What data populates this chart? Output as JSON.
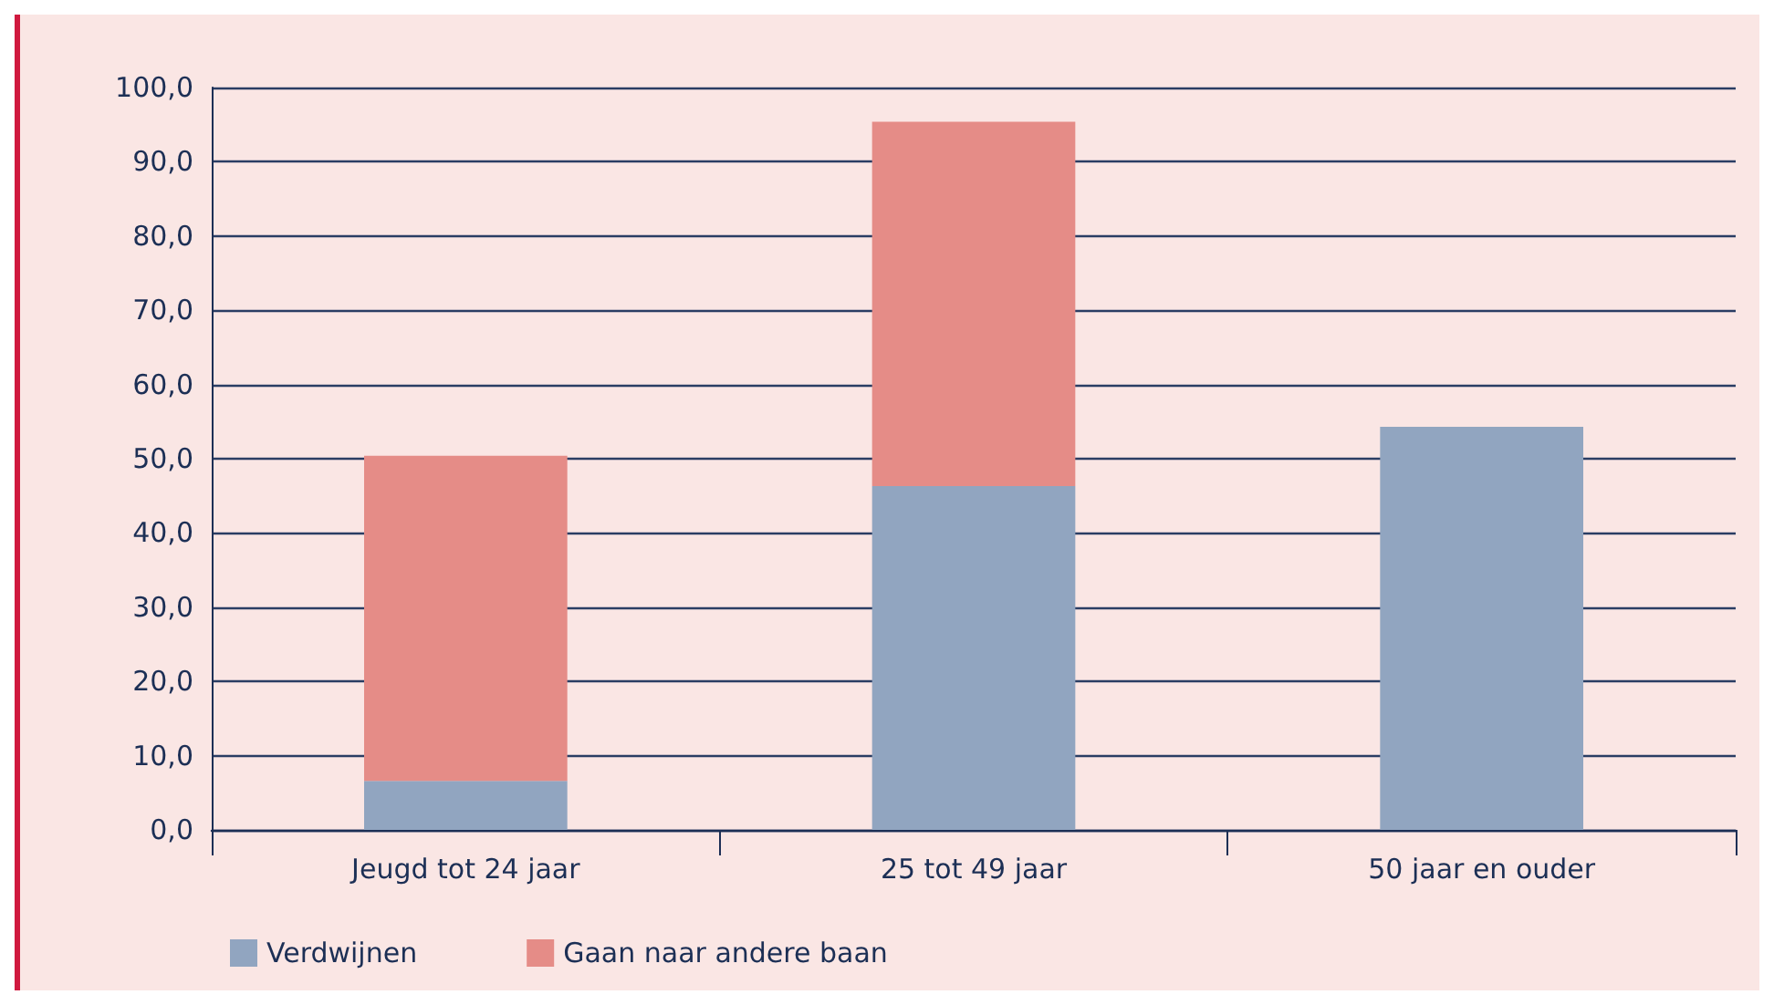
{
  "chart_data": {
    "type": "bar",
    "stacked": true,
    "categories": [
      "Jeugd tot 24 jaar",
      "25 tot 49 jaar",
      "50 jaar en ouder"
    ],
    "series": [
      {
        "name": "Verdwijnen",
        "color": "#91a5c0",
        "values": [
          6.6,
          46.3,
          54.3
        ]
      },
      {
        "name": "Gaan naar andere baan",
        "color": "#e58c87",
        "values": [
          43.8,
          49.1,
          null
        ]
      }
    ],
    "ylim": [
      0,
      100
    ],
    "yticks": [
      {
        "value": 0,
        "label": "0,0"
      },
      {
        "value": 10,
        "label": "10,0"
      },
      {
        "value": 20,
        "label": "20,0"
      },
      {
        "value": 30,
        "label": "30,0"
      },
      {
        "value": 40,
        "label": "40,0"
      },
      {
        "value": 50,
        "label": "50,0"
      },
      {
        "value": 60,
        "label": "60,0"
      },
      {
        "value": 70,
        "label": "70,0"
      },
      {
        "value": 80,
        "label": "80,0"
      },
      {
        "value": 90,
        "label": "90,0"
      },
      {
        "value": 100,
        "label": "100,0"
      }
    ],
    "grid": "y",
    "legend": "bottom left"
  }
}
